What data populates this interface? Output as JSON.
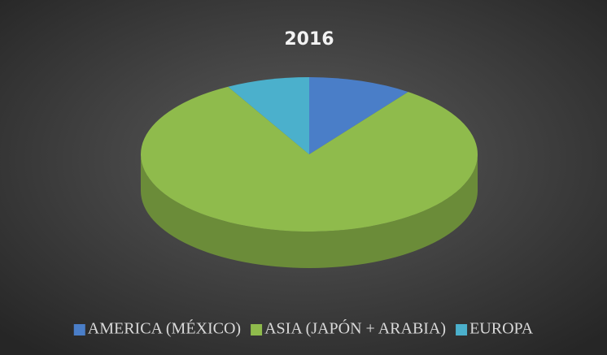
{
  "chart_data": {
    "type": "pie",
    "title": "2016",
    "categories": [
      "AMERICA (MÉXICO)",
      "ASIA (JAPÓN + ARABIA)",
      "EUROPA"
    ],
    "values": [
      10,
      82,
      8
    ],
    "colors": [
      "#4a7ec8",
      "#8fbb4c",
      "#4bb0cc"
    ],
    "legend": "bottom"
  }
}
